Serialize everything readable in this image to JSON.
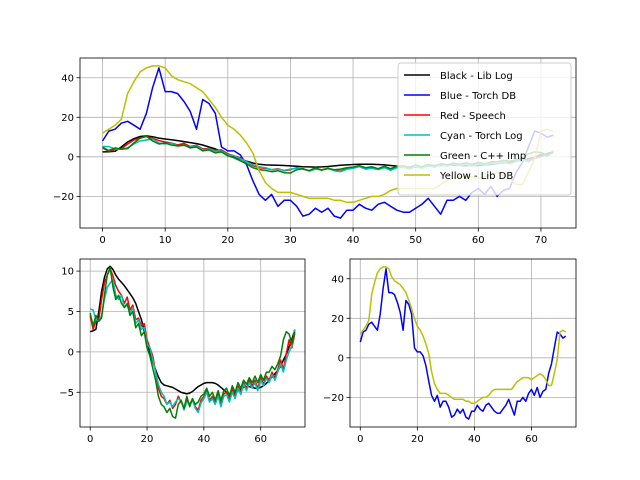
{
  "chart_data": [
    {
      "type": "line",
      "title": "",
      "xlabel": "",
      "ylabel": "",
      "xlim": [
        -3.6,
        75.6
      ],
      "ylim": [
        -36,
        50
      ],
      "xticks": [
        0,
        10,
        20,
        30,
        40,
        50,
        60,
        70
      ],
      "yticks": [
        -20,
        0,
        20,
        40
      ],
      "grid": true,
      "legend_position": "top-right",
      "x": [
        0,
        1,
        2,
        3,
        4,
        5,
        6,
        7,
        8,
        9,
        10,
        11,
        12,
        13,
        14,
        15,
        16,
        17,
        18,
        19,
        20,
        21,
        22,
        23,
        24,
        25,
        26,
        27,
        28,
        29,
        30,
        31,
        32,
        33,
        34,
        35,
        36,
        37,
        38,
        39,
        40,
        41,
        42,
        43,
        44,
        45,
        46,
        47,
        48,
        49,
        50,
        51,
        52,
        53,
        54,
        55,
        56,
        57,
        58,
        59,
        60,
        61,
        62,
        63,
        64,
        65,
        66,
        67,
        68,
        69,
        70,
        71,
        72
      ],
      "series": [
        {
          "name": "Black - Lib Log",
          "color": "#000000",
          "values": [
            2.5,
            2.6,
            2.8,
            5.0,
            7.5,
            9.2,
            10.3,
            10.6,
            10.2,
            9.5,
            9.0,
            8.6,
            8.2,
            7.7,
            7.2,
            6.7,
            6.0,
            5.0,
            4.0,
            2.6,
            1.2,
            0.0,
            -1.2,
            -2.2,
            -3.1,
            -3.8,
            -4.1,
            -4.2,
            -4.3,
            -4.4,
            -4.6,
            -4.8,
            -5.0,
            -5.1,
            -5.2,
            -5.1,
            -4.9,
            -4.6,
            -4.3,
            -4.1,
            -3.9,
            -3.8,
            -3.8,
            -3.8,
            -3.9,
            -4.1,
            -4.4,
            -4.7,
            -5.0,
            -5.2,
            -5.2,
            -5.0,
            -4.8,
            -4.6,
            -4.4,
            -4.3,
            -4.3,
            -4.4,
            -4.5,
            -4.5,
            -4.4,
            -4.2,
            -3.9,
            -3.5,
            -3.1,
            -2.7,
            -2.3,
            -1.8,
            -1.0,
            -0.3,
            0.6,
            1.6,
            2.7
          ]
        },
        {
          "name": "Blue - Torch DB",
          "color": "#0000ff",
          "values": [
            8,
            13,
            14,
            17,
            18,
            16,
            14,
            22,
            35,
            45,
            33,
            33,
            32,
            28,
            23,
            14,
            29,
            27,
            22,
            5,
            3,
            3,
            1,
            -4,
            -12,
            -19,
            -22,
            -19,
            -25,
            -22,
            -22,
            -25,
            -30,
            -29,
            -26,
            -28,
            -26,
            -30,
            -31,
            -27,
            -27,
            -24,
            -26,
            -27,
            -24,
            -23,
            -25,
            -27,
            -28,
            -28,
            -26,
            -24,
            -21,
            -25,
            -29,
            -22,
            -22,
            -20,
            -22,
            -18,
            -16,
            -19,
            -15,
            -20,
            -17,
            -16,
            -8,
            -3,
            5,
            13,
            12,
            10,
            11
          ]
        },
        {
          "name": "Red - Speech",
          "color": "#ff0000",
          "values": [
            4.5,
            2.8,
            3.8,
            4.0,
            6.5,
            8.5,
            9.5,
            10.3,
            9.4,
            8.2,
            7.5,
            7.0,
            6.0,
            6.8,
            5.2,
            5.8,
            4.0,
            4.2,
            3.2,
            3.5,
            1.5,
            0.5,
            -0.5,
            -2.5,
            -4.5,
            -5.5,
            -5.8,
            -6.5,
            -6.0,
            -7.0,
            -6.5,
            -5.5,
            -6.2,
            -7.0,
            -6.0,
            -6.5,
            -5.8,
            -6.8,
            -7.2,
            -6.0,
            -5.5,
            -4.8,
            -6.0,
            -5.5,
            -6.2,
            -5.0,
            -6.5,
            -5.2,
            -5.0,
            -6.0,
            -4.5,
            -5.5,
            -4.2,
            -5.0,
            -3.8,
            -4.5,
            -3.5,
            -4.2,
            -3.5,
            -4.5,
            -3.2,
            -4.0,
            -3.0,
            -3.5,
            -2.5,
            -3.2,
            -2.2,
            -1.0,
            -2.2,
            -0.2,
            1.5,
            0.5,
            2.3
          ]
        },
        {
          "name": "Cyan - Torch Log",
          "color": "#00bfbf",
          "values": [
            5.3,
            5.2,
            4.0,
            3.8,
            4.5,
            6.5,
            8.0,
            8.5,
            9.0,
            7.0,
            6.5,
            7.0,
            5.5,
            5.8,
            4.8,
            5.5,
            3.5,
            4.0,
            2.8,
            3.0,
            1.0,
            0.5,
            -1.0,
            -2.5,
            -4.0,
            -5.0,
            -5.5,
            -6.5,
            -6.2,
            -6.8,
            -6.2,
            -5.8,
            -6.0,
            -7.2,
            -6.2,
            -6.5,
            -6.0,
            -7.0,
            -7.5,
            -6.3,
            -5.8,
            -5.0,
            -6.2,
            -5.8,
            -6.5,
            -5.5,
            -6.8,
            -5.5,
            -5.3,
            -6.2,
            -5.0,
            -5.8,
            -4.5,
            -5.3,
            -4.0,
            -4.8,
            -3.8,
            -4.5,
            -3.8,
            -4.8,
            -3.5,
            -4.2,
            -3.3,
            -3.8,
            -2.8,
            -3.5,
            -2.5,
            -1.5,
            -2.5,
            -1.0,
            0.0,
            0.8,
            2.8
          ]
        },
        {
          "name": "Green - C++ Imp",
          "color": "#008000",
          "values": [
            4.8,
            3.2,
            4.5,
            3.8,
            4.2,
            7.0,
            9.5,
            10.5,
            8.0,
            6.5,
            7.0,
            6.0,
            5.5,
            6.0,
            4.5,
            5.0,
            3.0,
            3.5,
            2.0,
            2.5,
            0.5,
            -0.5,
            -2.0,
            -3.5,
            -5.5,
            -6.5,
            -6.8,
            -7.5,
            -7.0,
            -8.0,
            -8.2,
            -6.5,
            -6.0,
            -7.0,
            -5.5,
            -6.8,
            -5.8,
            -6.5,
            -6.2,
            -5.5,
            -5.2,
            -4.5,
            -5.5,
            -5.0,
            -6.0,
            -4.8,
            -6.0,
            -4.8,
            -4.5,
            -5.5,
            -4.2,
            -5.0,
            -3.8,
            -4.5,
            -3.5,
            -4.0,
            -3.2,
            -3.8,
            -3.0,
            -3.8,
            -2.8,
            -3.5,
            -2.5,
            -2.5,
            -1.8,
            -2.2,
            -1.5,
            -0.5,
            1.5,
            2.5,
            2.2,
            1.0,
            2.5
          ]
        },
        {
          "name": "Yellow - Lib DB",
          "color": "#bfbf00",
          "values": [
            12,
            14,
            16,
            19,
            32,
            38,
            43,
            45,
            46,
            46,
            45,
            41,
            39,
            38,
            37,
            35,
            33,
            29,
            25,
            20,
            16,
            14,
            11,
            7,
            2,
            -7,
            -13,
            -16,
            -18,
            -18,
            -18,
            -19,
            -20,
            -21,
            -21,
            -21,
            -21,
            -22,
            -22,
            -23,
            -23,
            -22,
            -21,
            -20,
            -20,
            -19,
            -17,
            -16,
            -16,
            -16,
            -16,
            -16,
            -16,
            -16,
            -14,
            -12,
            -11,
            -10,
            -10,
            -10,
            -11,
            -10,
            -9,
            -8,
            -9,
            -11,
            -14,
            -14,
            -8,
            -1,
            13,
            14,
            13
          ]
        }
      ]
    },
    {
      "type": "line",
      "title": "",
      "xlabel": "",
      "ylabel": "",
      "xlim": [
        -3.6,
        75.6
      ],
      "ylim": [
        -9.3,
        11.5
      ],
      "xticks": [
        0,
        20,
        40,
        60
      ],
      "yticks": [
        -5,
        0,
        5,
        10
      ],
      "grid": true,
      "series_shown": [
        "Black - Lib Log",
        "Red - Speech",
        "Cyan - Torch Log",
        "Green - C++ Imp"
      ]
    },
    {
      "type": "line",
      "title": "",
      "xlabel": "",
      "ylabel": "",
      "xlim": [
        -3.6,
        75.6
      ],
      "ylim": [
        -35,
        50
      ],
      "xticks": [
        0,
        20,
        40,
        60
      ],
      "yticks": [
        -20,
        0,
        20,
        40
      ],
      "grid": true,
      "series_shown": [
        "Blue - Torch DB",
        "Yellow - Lib DB"
      ]
    }
  ]
}
